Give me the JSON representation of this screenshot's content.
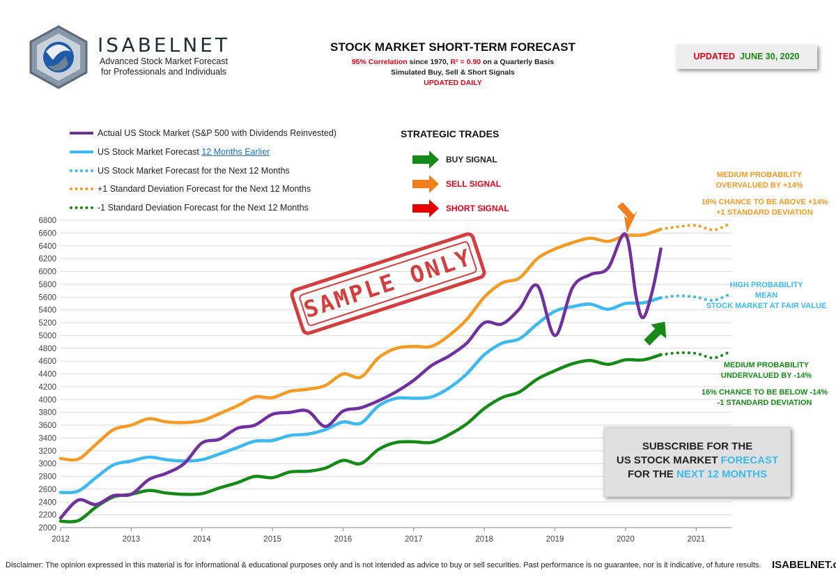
{
  "header": {
    "brand_name": "ISABELNET",
    "brand_tagline_1": "Advanced Stock Market Forecast",
    "brand_tagline_2": "for Professionals and Individuals",
    "title": "STOCK MARKET SHORT-TERM FORECAST",
    "line1_red": "95% Correlation",
    "line1_mid": " since 1970, ",
    "line1_r2": "R² = 0.90",
    "line1_end": " on a Quarterly Basis",
    "line2": "Simulated Buy, Sell & Short Signals",
    "line3": "UPDATED DAILY",
    "updated_label": "UPDATED",
    "updated_date": "JUNE 30, 2020"
  },
  "legend": [
    {
      "label": "Actual US Stock Market (S&P 500 with Dividends Reinvested)",
      "color": "#7030a0",
      "style": "solid"
    },
    {
      "label_prefix": "US Stock Market Forecast ",
      "label_link": "12 Months Earlier",
      "color": "#3cb9f0",
      "style": "solid"
    },
    {
      "label": "US Stock Market Forecast for the Next 12 Months",
      "color": "#3cb9f0",
      "style": "dotted"
    },
    {
      "label": "+1 Standard Deviation Forecast for the Next 12 Months",
      "color": "#f59a23",
      "style": "dotted"
    },
    {
      "label": "-1 Standard Deviation Forecast for the Next 12 Months",
      "color": "#168a16",
      "style": "dotted"
    }
  ],
  "strategic": {
    "title": "STRATEGIC TRADES",
    "signals": [
      {
        "label": "BUY SIGNAL",
        "color": "#168a16"
      },
      {
        "label": "SELL SIGNAL",
        "color": "#f07f1e"
      },
      {
        "label": "SHORT SIGNAL",
        "color": "#e60000"
      }
    ]
  },
  "annotations": {
    "upper_1": "MEDIUM  PROBABILITY",
    "upper_2": "OVERVALUED  BY +14%",
    "upper_3": "16% CHANCE TO BE ABOVE +14%",
    "upper_4": "+1 STANDARD  DEVIATION",
    "mid_1": "HIGH  PROBABILITY",
    "mid_2": "MEAN",
    "mid_3": "STOCK MARKET  AT FAIR VALUE",
    "lower_1": "MEDIUM  PROBABILITY",
    "lower_2": "UNDERVALUED  BY -14%",
    "lower_3": "16% CHANCE TO BE BELOW -14%",
    "lower_4": "-1 STANDARD  DEVIATION"
  },
  "subscribe": {
    "line1": "SUBSCRIBE FOR THE",
    "line2_a": "US STOCK MARKET ",
    "line2_b": "FORECAST",
    "line3_a": "FOR THE ",
    "line3_b": "NEXT 12 MONTHS"
  },
  "stamp": "SAMPLE ONLY",
  "footer": {
    "disclaimer": "Disclaimer: The opinion expressed in this material is for informational & educational purposes only and is not intended as advice to buy or sell securities. Past performance is no guarantee, nor is it indicative, of future results.",
    "brand": "ISABELNET.com"
  },
  "colors": {
    "purple": "#7030a0",
    "blue": "#3cb9f0",
    "orange": "#f59a23",
    "green": "#168a16",
    "red": "#e0001b"
  },
  "chart_data": {
    "type": "line",
    "xlabel": "",
    "ylabel": "",
    "xlim": [
      2012,
      2021.5
    ],
    "ylim": [
      2000,
      6800
    ],
    "x_ticks": [
      "2012",
      "2013",
      "2014",
      "2015",
      "2016",
      "2017",
      "2018",
      "2019",
      "2020",
      "2021"
    ],
    "y_ticks": [
      2000,
      2200,
      2400,
      2600,
      2800,
      3000,
      3200,
      3400,
      3600,
      3800,
      4000,
      4200,
      4400,
      4600,
      4800,
      5000,
      5200,
      5400,
      5600,
      5800,
      6000,
      6200,
      6400,
      6600,
      6800
    ],
    "grid": "horizontal",
    "series": [
      {
        "name": "Actual US Stock Market (S&P 500 with Dividends Reinvested)",
        "color": "#7030a0",
        "style": "solid",
        "points": [
          [
            2012.0,
            2150
          ],
          [
            2012.25,
            2430
          ],
          [
            2012.5,
            2360
          ],
          [
            2012.75,
            2500
          ],
          [
            2013.0,
            2520
          ],
          [
            2013.25,
            2750
          ],
          [
            2013.5,
            2850
          ],
          [
            2013.75,
            3000
          ],
          [
            2014.0,
            3320
          ],
          [
            2014.25,
            3380
          ],
          [
            2014.5,
            3550
          ],
          [
            2014.75,
            3600
          ],
          [
            2015.0,
            3770
          ],
          [
            2015.25,
            3800
          ],
          [
            2015.5,
            3820
          ],
          [
            2015.75,
            3580
          ],
          [
            2016.0,
            3820
          ],
          [
            2016.25,
            3870
          ],
          [
            2016.5,
            3980
          ],
          [
            2016.75,
            4120
          ],
          [
            2017.0,
            4300
          ],
          [
            2017.25,
            4530
          ],
          [
            2017.5,
            4680
          ],
          [
            2017.75,
            4880
          ],
          [
            2018.0,
            5200
          ],
          [
            2018.25,
            5180
          ],
          [
            2018.5,
            5420
          ],
          [
            2018.75,
            5780
          ],
          [
            2019.0,
            5000
          ],
          [
            2019.25,
            5750
          ],
          [
            2019.5,
            5950
          ],
          [
            2019.75,
            6050
          ],
          [
            2020.0,
            6580
          ],
          [
            2020.15,
            5600
          ],
          [
            2020.25,
            5280
          ],
          [
            2020.38,
            5700
          ],
          [
            2020.5,
            6350
          ]
        ]
      },
      {
        "name": "US Stock Market Forecast 12 Months Earlier",
        "color": "#3cb9f0",
        "style": "solid",
        "points": [
          [
            2012.0,
            2550
          ],
          [
            2012.25,
            2570
          ],
          [
            2012.5,
            2780
          ],
          [
            2012.75,
            2980
          ],
          [
            2013.0,
            3040
          ],
          [
            2013.25,
            3100
          ],
          [
            2013.5,
            3060
          ],
          [
            2013.75,
            3040
          ],
          [
            2014.0,
            3060
          ],
          [
            2014.25,
            3150
          ],
          [
            2014.5,
            3250
          ],
          [
            2014.75,
            3350
          ],
          [
            2015.0,
            3360
          ],
          [
            2015.25,
            3440
          ],
          [
            2015.5,
            3460
          ],
          [
            2015.75,
            3530
          ],
          [
            2016.0,
            3650
          ],
          [
            2016.25,
            3630
          ],
          [
            2016.5,
            3900
          ],
          [
            2016.75,
            4020
          ],
          [
            2017.0,
            4020
          ],
          [
            2017.25,
            4040
          ],
          [
            2017.5,
            4180
          ],
          [
            2017.75,
            4400
          ],
          [
            2018.0,
            4700
          ],
          [
            2018.25,
            4880
          ],
          [
            2018.5,
            4950
          ],
          [
            2018.75,
            5180
          ],
          [
            2019.0,
            5380
          ],
          [
            2019.25,
            5450
          ],
          [
            2019.5,
            5490
          ],
          [
            2019.75,
            5410
          ],
          [
            2020.0,
            5500
          ],
          [
            2020.25,
            5510
          ],
          [
            2020.5,
            5590
          ]
        ]
      },
      {
        "name": "US Stock Market Forecast for the Next 12 Months",
        "color": "#3cb9f0",
        "style": "dotted",
        "points": [
          [
            2020.5,
            5590
          ],
          [
            2020.75,
            5620
          ],
          [
            2021.0,
            5600
          ],
          [
            2021.25,
            5550
          ],
          [
            2021.5,
            5660
          ]
        ]
      },
      {
        "name": "+1 Standard Deviation Forecast",
        "color": "#f59a23",
        "style": "solid",
        "points": [
          [
            2012.0,
            3080
          ],
          [
            2012.25,
            3070
          ],
          [
            2012.5,
            3300
          ],
          [
            2012.75,
            3530
          ],
          [
            2013.0,
            3600
          ],
          [
            2013.25,
            3700
          ],
          [
            2013.5,
            3650
          ],
          [
            2013.75,
            3640
          ],
          [
            2014.0,
            3670
          ],
          [
            2014.25,
            3780
          ],
          [
            2014.5,
            3900
          ],
          [
            2014.75,
            4040
          ],
          [
            2015.0,
            4030
          ],
          [
            2015.25,
            4130
          ],
          [
            2015.5,
            4160
          ],
          [
            2015.75,
            4220
          ],
          [
            2016.0,
            4400
          ],
          [
            2016.25,
            4350
          ],
          [
            2016.5,
            4650
          ],
          [
            2016.75,
            4800
          ],
          [
            2017.0,
            4830
          ],
          [
            2017.25,
            4830
          ],
          [
            2017.5,
            5000
          ],
          [
            2017.75,
            5250
          ],
          [
            2018.0,
            5600
          ],
          [
            2018.25,
            5820
          ],
          [
            2018.5,
            5900
          ],
          [
            2018.75,
            6200
          ],
          [
            2019.0,
            6350
          ],
          [
            2019.25,
            6450
          ],
          [
            2019.5,
            6520
          ],
          [
            2019.75,
            6470
          ],
          [
            2020.0,
            6560
          ],
          [
            2020.25,
            6570
          ],
          [
            2020.5,
            6660
          ]
        ]
      },
      {
        "name": "+1 Standard Deviation Forecast for the Next 12 Months",
        "color": "#f59a23",
        "style": "dotted",
        "points": [
          [
            2020.5,
            6660
          ],
          [
            2020.75,
            6700
          ],
          [
            2021.0,
            6720
          ],
          [
            2021.25,
            6650
          ],
          [
            2021.5,
            6760
          ]
        ]
      },
      {
        "name": "-1 Standard Deviation Forecast",
        "color": "#168a16",
        "style": "solid",
        "points": [
          [
            2012.0,
            2100
          ],
          [
            2012.25,
            2110
          ],
          [
            2012.5,
            2320
          ],
          [
            2012.75,
            2480
          ],
          [
            2013.0,
            2520
          ],
          [
            2013.25,
            2580
          ],
          [
            2013.5,
            2540
          ],
          [
            2013.75,
            2520
          ],
          [
            2014.0,
            2530
          ],
          [
            2014.25,
            2620
          ],
          [
            2014.5,
            2700
          ],
          [
            2014.75,
            2800
          ],
          [
            2015.0,
            2780
          ],
          [
            2015.25,
            2870
          ],
          [
            2015.5,
            2880
          ],
          [
            2015.75,
            2930
          ],
          [
            2016.0,
            3050
          ],
          [
            2016.25,
            3000
          ],
          [
            2016.5,
            3220
          ],
          [
            2016.75,
            3330
          ],
          [
            2017.0,
            3340
          ],
          [
            2017.25,
            3330
          ],
          [
            2017.5,
            3450
          ],
          [
            2017.75,
            3620
          ],
          [
            2018.0,
            3860
          ],
          [
            2018.25,
            4030
          ],
          [
            2018.5,
            4120
          ],
          [
            2018.75,
            4320
          ],
          [
            2019.0,
            4450
          ],
          [
            2019.25,
            4560
          ],
          [
            2019.5,
            4610
          ],
          [
            2019.75,
            4550
          ],
          [
            2020.0,
            4620
          ],
          [
            2020.25,
            4620
          ],
          [
            2020.5,
            4700
          ]
        ]
      },
      {
        "name": "-1 Standard Deviation Forecast for the Next 12 Months",
        "color": "#168a16",
        "style": "dotted",
        "points": [
          [
            2020.5,
            4700
          ],
          [
            2020.75,
            4730
          ],
          [
            2021.0,
            4720
          ],
          [
            2021.25,
            4650
          ],
          [
            2021.5,
            4760
          ]
        ]
      }
    ],
    "signal_arrows": [
      {
        "type": "SELL",
        "x": 2020.0,
        "y": 6580,
        "color": "#f07f1e"
      },
      {
        "type": "BUY",
        "x": 2020.3,
        "y": 5280,
        "color": "#168a16"
      }
    ]
  }
}
